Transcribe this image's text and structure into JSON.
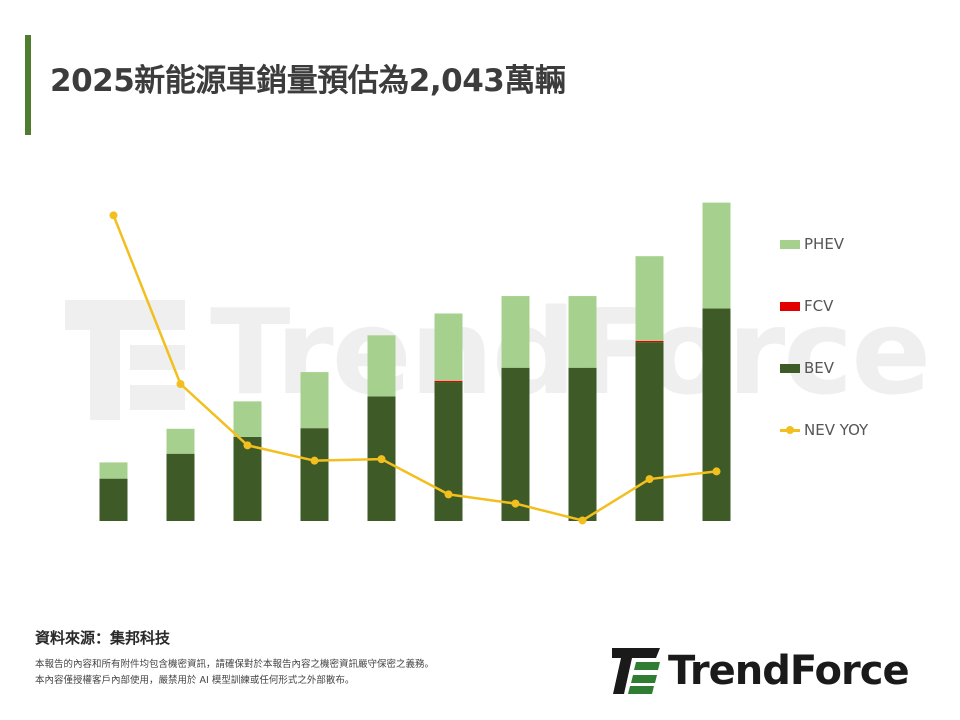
{
  "header": {
    "title": "2025新能源車銷量預估為2,043萬輛"
  },
  "colors": {
    "accent": "#4e7d2f",
    "phev": "#a6d08d",
    "fcv": "#e30000",
    "bev": "#3d5a27",
    "nev_yoy": "#f2bf1e",
    "logo_green": "#2e7d32"
  },
  "watermark": {
    "text": "TrendForce"
  },
  "chart_data": {
    "type": "bar",
    "stacked": true,
    "categories": [
      "",
      "",
      "",
      "",
      "",
      "",
      "",
      "",
      "",
      ""
    ],
    "series": [
      {
        "name": "BEV",
        "kind": "bar",
        "color": "#3d5a27",
        "values": [
          68,
          108,
          135,
          149,
          200,
          223,
          246,
          246,
          287,
          341
        ]
      },
      {
        "name": "FCV",
        "kind": "bar",
        "color": "#e30000",
        "values": [
          0,
          0,
          0,
          0,
          0,
          2,
          0,
          0,
          2,
          0
        ]
      },
      {
        "name": "PHEV",
        "kind": "bar",
        "color": "#a6d08d",
        "values": [
          26,
          40,
          57,
          90,
          98,
          108,
          115,
          115,
          136,
          170
        ]
      },
      {
        "name": "NEV YOY",
        "kind": "line",
        "color": "#f2bf1e",
        "values": [
          100,
          45,
          25,
          20,
          20.5,
          9,
          6,
          0.5,
          14,
          16.5
        ]
      }
    ],
    "bar_ylim": [
      0,
      520
    ],
    "line_ylim": [
      0,
      105
    ],
    "grid": false,
    "legend_position": "right",
    "title": "",
    "xlabel": "",
    "ylabel": ""
  },
  "legend": {
    "items": [
      {
        "label": "PHEV",
        "type": "box",
        "color": "#a6d08d"
      },
      {
        "label": "FCV",
        "type": "box",
        "color": "#e30000"
      },
      {
        "label": "BEV",
        "type": "box",
        "color": "#3d5a27"
      },
      {
        "label": "NEV YOY",
        "type": "line",
        "color": "#f2bf1e"
      }
    ]
  },
  "footer": {
    "source": "資料來源：集邦科技",
    "disclaimer_line1": "本報告的內容和所有附件均包含機密資訊，請確保對於本報告內容之機密資訊嚴守保密之義務。",
    "disclaimer_line2": "本內容僅授權客戶內部使用，嚴禁用於 AI 模型訓練或任何形式之外部散布。",
    "logo_text": "TrendForce"
  }
}
